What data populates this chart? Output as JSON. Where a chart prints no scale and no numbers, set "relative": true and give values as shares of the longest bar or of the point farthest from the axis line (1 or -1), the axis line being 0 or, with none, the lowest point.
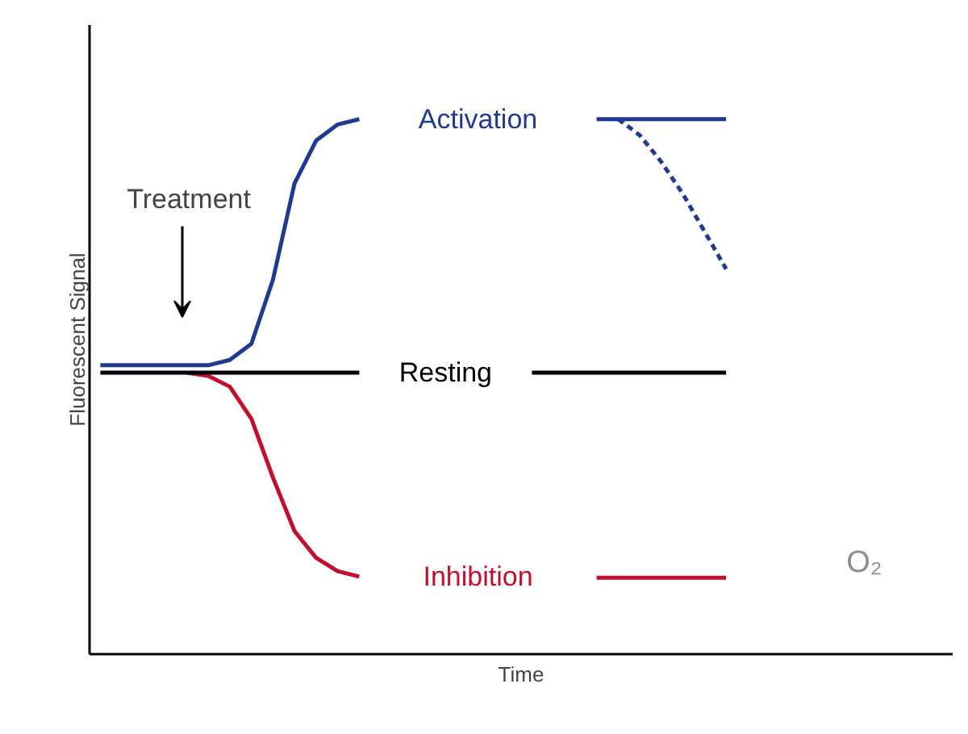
{
  "chart_data": {
    "type": "line",
    "relative": true,
    "xlabel": "Time",
    "ylabel": "Fluorescent Signal",
    "categories": [
      null,
      null,
      null,
      null,
      null,
      null,
      null,
      null,
      null,
      null,
      null,
      null,
      null,
      null,
      null,
      null,
      null,
      null,
      null,
      null,
      null,
      null,
      null,
      null,
      null,
      null,
      null,
      null,
      null,
      null,
      null,
      null,
      null,
      null,
      null,
      null,
      null,
      null,
      null,
      null
    ],
    "series": [
      {
        "name": "Activation",
        "color": "#1f3a8f",
        "values": [
          0.54,
          0.54,
          0.54,
          0.54,
          0.54,
          0.54,
          0.55,
          0.58,
          0.7,
          0.88,
          0.96,
          0.99,
          1.0,
          null,
          null,
          null,
          null,
          null,
          null,
          null,
          null,
          null,
          null,
          1.0,
          1.0,
          1.0,
          1.0,
          1.0,
          1.0,
          1.0,
          null,
          null,
          null,
          null,
          null,
          null,
          null,
          null,
          null,
          null
        ]
      },
      {
        "name": "Resting",
        "color": "#000000",
        "values": [
          0.526,
          0.526,
          0.526,
          0.526,
          0.526,
          0.526,
          0.526,
          0.526,
          0.526,
          0.526,
          0.526,
          0.526,
          0.526,
          null,
          null,
          null,
          null,
          null,
          null,
          null,
          0.526,
          0.526,
          0.526,
          0.526,
          0.526,
          0.526,
          0.526,
          0.526,
          0.526,
          0.526,
          null,
          null,
          null,
          null,
          null,
          null,
          null,
          null,
          null,
          null
        ]
      },
      {
        "name": "Inhibition",
        "color": "#c0102e",
        "values": [
          null,
          null,
          null,
          null,
          0.526,
          0.52,
          0.5,
          0.44,
          0.33,
          0.23,
          0.18,
          0.155,
          0.145,
          null,
          null,
          null,
          null,
          null,
          null,
          null,
          null,
          null,
          null,
          0.143,
          0.143,
          0.143,
          0.143,
          0.143,
          0.143,
          0.143,
          null,
          null,
          null,
          null,
          null,
          null,
          null,
          null,
          null,
          null
        ]
      },
      {
        "color": "#1f3a8f",
        "line_style": "dashed",
        "values": [
          null,
          null,
          null,
          null,
          null,
          null,
          null,
          null,
          null,
          null,
          null,
          null,
          null,
          null,
          null,
          null,
          null,
          null,
          null,
          null,
          null,
          null,
          null,
          null,
          1.0,
          0.97,
          0.92,
          0.86,
          0.79,
          0.72,
          null,
          null,
          null,
          null,
          null,
          null,
          null,
          null,
          null,
          null
        ]
      }
    ],
    "annotations": [
      "Treatment",
      "O₂"
    ],
    "legend": false,
    "marker": "none",
    "line_style": "solid"
  }
}
